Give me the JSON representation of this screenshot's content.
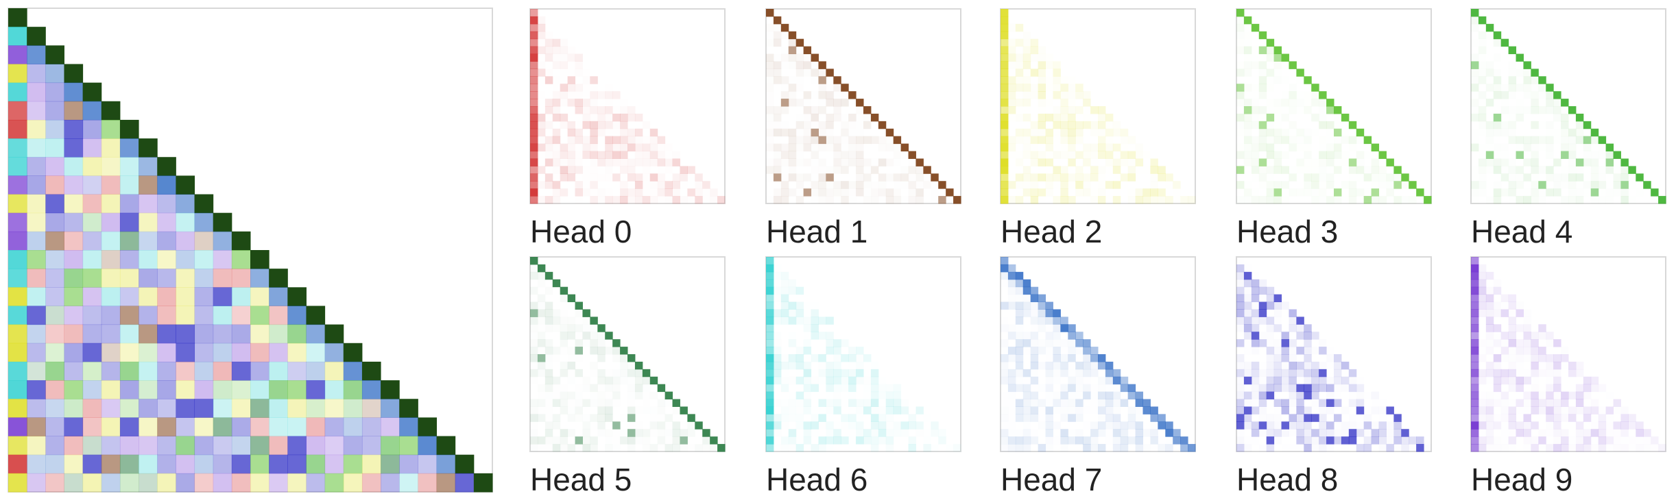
{
  "heads": [
    {
      "label": "Head 0",
      "color": "#d02828"
    },
    {
      "label": "Head 1",
      "color": "#7a3c12"
    },
    {
      "label": "Head 2",
      "color": "#dcdc18"
    },
    {
      "label": "Head 3",
      "color": "#5cc030"
    },
    {
      "label": "Head 4",
      "color": "#3cb02c"
    },
    {
      "label": "Head 5",
      "color": "#287a40"
    },
    {
      "label": "Head 6",
      "color": "#30d0d0"
    },
    {
      "label": "Head 7",
      "color": "#2060c0"
    },
    {
      "label": "Head 8",
      "color": "#1c1cc0"
    },
    {
      "label": "Head 9",
      "color": "#7030d0"
    }
  ]
}
